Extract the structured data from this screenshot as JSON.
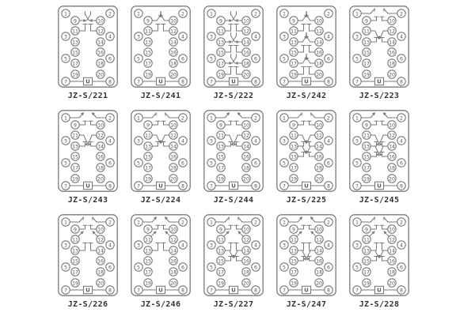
{
  "page": {
    "background": "#ffffff",
    "line_color": "#7a7a7a",
    "number_color": "#565656",
    "label_color": "#333333"
  },
  "terminal_block": {
    "outer_left": [
      "1",
      "3",
      "5",
      "7"
    ],
    "outer_right": [
      "2",
      "4",
      "6",
      "8"
    ],
    "inner_left": [
      "9",
      "11",
      "13",
      "15",
      "17",
      "19"
    ],
    "inner_right": [
      "10",
      "12",
      "14",
      "16",
      "18",
      "20"
    ],
    "power_label": "U"
  },
  "diagrams": [
    {
      "label": "JZ-S/221",
      "contacts": [
        {
          "a": "9",
          "b": "11",
          "pos": "inner-up",
          "kind": "instant"
        },
        {
          "a": "10",
          "b": "12",
          "pos": "inner-up",
          "kind": "instant"
        }
      ]
    },
    {
      "label": "JZ-S/241",
      "contacts": [
        {
          "a": "9",
          "b": "11",
          "pos": "inner-up",
          "kind": "delayed"
        },
        {
          "a": "10",
          "b": "12",
          "pos": "inner-up",
          "kind": "delayed"
        }
      ]
    },
    {
      "label": "JZ-S/222",
      "contacts": [
        {
          "a": "9",
          "b": "11",
          "pos": "inner-up",
          "kind": "instant"
        },
        {
          "a": "10",
          "b": "12",
          "pos": "inner-up",
          "kind": "instant"
        },
        {
          "a": "13",
          "b": "15",
          "pos": "inner-up",
          "kind": "instant"
        },
        {
          "a": "14",
          "b": "16",
          "pos": "inner-up",
          "kind": "instant"
        },
        {
          "a": "17",
          "b": "19",
          "pos": "inner-up",
          "kind": "instant"
        },
        {
          "a": "18",
          "b": "20",
          "pos": "inner-up",
          "kind": "instant"
        }
      ]
    },
    {
      "label": "JZ-S/242",
      "contacts": [
        {
          "a": "9",
          "b": "11",
          "pos": "inner-up",
          "kind": "delayed"
        },
        {
          "a": "10",
          "b": "12",
          "pos": "inner-up",
          "kind": "delayed"
        },
        {
          "a": "13",
          "b": "15",
          "pos": "inner-up",
          "kind": "delayed"
        },
        {
          "a": "14",
          "b": "16",
          "pos": "inner-up",
          "kind": "delayed"
        },
        {
          "a": "17",
          "b": "19",
          "pos": "inner-up",
          "kind": "delayed"
        },
        {
          "a": "18",
          "b": "20",
          "pos": "inner-up",
          "kind": "delayed"
        }
      ]
    },
    {
      "label": "JZ-S/223",
      "contacts": [
        {
          "a": "1",
          "b": "9",
          "pos": "top",
          "kind": "instant"
        },
        {
          "a": "2",
          "b": "10",
          "pos": "top",
          "kind": "instant"
        },
        {
          "a": "11",
          "b": "13",
          "pos": "inner-down",
          "kind": "instant"
        },
        {
          "a": "12",
          "b": "14",
          "pos": "inner-down",
          "kind": "instant"
        }
      ]
    },
    {
      "label": "JZ-S/243",
      "contacts": [
        {
          "a": "1",
          "b": "9",
          "pos": "top",
          "kind": "delayed"
        },
        {
          "a": "2",
          "b": "10",
          "pos": "top",
          "kind": "delayed"
        },
        {
          "a": "11",
          "b": "13",
          "pos": "inner-down",
          "kind": "delayed"
        },
        {
          "a": "12",
          "b": "14",
          "pos": "inner-down",
          "kind": "delayed"
        }
      ]
    },
    {
      "label": "JZ-S/224",
      "contacts": [
        {
          "a": "1",
          "b": "9",
          "pos": "top",
          "kind": "instant"
        },
        {
          "a": "2",
          "b": "10",
          "pos": "top",
          "kind": "instant"
        },
        {
          "a": "11",
          "b": "13",
          "pos": "inner-down",
          "kind": "instant"
        },
        {
          "a": "12",
          "b": "14",
          "pos": "inner-down",
          "kind": "instant"
        }
      ]
    },
    {
      "label": "JZ-S/244",
      "contacts": [
        {
          "a": "1",
          "b": "9",
          "pos": "top",
          "kind": "delayed"
        },
        {
          "a": "2",
          "b": "10",
          "pos": "top",
          "kind": "delayed"
        },
        {
          "a": "11",
          "b": "13",
          "pos": "inner-down",
          "kind": "delayed"
        },
        {
          "a": "12",
          "b": "14",
          "pos": "inner-down",
          "kind": "delayed"
        }
      ]
    },
    {
      "label": "JZ-S/225",
      "contacts": [
        {
          "a": "1",
          "b": "9",
          "pos": "top",
          "kind": "instant"
        },
        {
          "a": "2",
          "b": "10",
          "pos": "top",
          "kind": "instant"
        },
        {
          "a": "11",
          "b": "13",
          "pos": "inner-down",
          "kind": "instant"
        },
        {
          "a": "12",
          "b": "14",
          "pos": "inner-down",
          "kind": "instant"
        },
        {
          "a": "13",
          "b": "15",
          "pos": "inner-down",
          "kind": "instant"
        },
        {
          "a": "14",
          "b": "16",
          "pos": "inner-down",
          "kind": "instant"
        }
      ]
    },
    {
      "label": "JZ-S/245",
      "contacts": [
        {
          "a": "1",
          "b": "9",
          "pos": "top",
          "kind": "delayed"
        },
        {
          "a": "2",
          "b": "10",
          "pos": "top",
          "kind": "delayed"
        },
        {
          "a": "11",
          "b": "13",
          "pos": "inner-down",
          "kind": "delayed"
        },
        {
          "a": "12",
          "b": "14",
          "pos": "inner-down",
          "kind": "delayed"
        },
        {
          "a": "13",
          "b": "15",
          "pos": "inner-down",
          "kind": "delayed"
        },
        {
          "a": "14",
          "b": "16",
          "pos": "inner-down",
          "kind": "delayed"
        }
      ]
    },
    {
      "label": "JZ-S/226",
      "contacts": [
        {
          "a": "1",
          "b": "9",
          "pos": "top",
          "kind": "instant"
        },
        {
          "a": "2",
          "b": "10",
          "pos": "top",
          "kind": "instant"
        },
        {
          "a": "11",
          "b": "13",
          "pos": "terminal-arrow",
          "kind": "instant"
        },
        {
          "a": "12",
          "b": "14",
          "pos": "terminal-arrow",
          "kind": "instant"
        }
      ]
    },
    {
      "label": "JZ-S/246",
      "contacts": [
        {
          "a": "1",
          "b": "9",
          "pos": "top",
          "kind": "delayed"
        },
        {
          "a": "2",
          "b": "10",
          "pos": "top",
          "kind": "delayed"
        },
        {
          "a": "11",
          "b": "13",
          "pos": "terminal-arrow",
          "kind": "delayed"
        },
        {
          "a": "12",
          "b": "14",
          "pos": "terminal-arrow",
          "kind": "delayed"
        }
      ]
    },
    {
      "label": "JZ-S/227",
      "contacts": [
        {
          "a": "1",
          "b": "9",
          "pos": "top",
          "kind": "instant"
        },
        {
          "a": "2",
          "b": "10",
          "pos": "top",
          "kind": "instant"
        },
        {
          "a": "11",
          "b": "13",
          "pos": "terminal-arrow",
          "kind": "instant"
        },
        {
          "a": "12",
          "b": "14",
          "pos": "terminal-arrow",
          "kind": "instant"
        },
        {
          "a": "13",
          "b": "15",
          "pos": "inner-down",
          "kind": "instant"
        },
        {
          "a": "14",
          "b": "16",
          "pos": "inner-down",
          "kind": "instant"
        }
      ]
    },
    {
      "label": "JZ-S/247",
      "contacts": [
        {
          "a": "1",
          "b": "9",
          "pos": "top",
          "kind": "delayed"
        },
        {
          "a": "2",
          "b": "10",
          "pos": "top",
          "kind": "delayed"
        },
        {
          "a": "11",
          "b": "13",
          "pos": "terminal-arrow",
          "kind": "delayed"
        },
        {
          "a": "12",
          "b": "14",
          "pos": "terminal-arrow",
          "kind": "delayed"
        },
        {
          "a": "13",
          "b": "15",
          "pos": "inner-down",
          "kind": "delayed"
        },
        {
          "a": "14",
          "b": "16",
          "pos": "inner-down",
          "kind": "delayed"
        }
      ]
    },
    {
      "label": "JZ-S/228",
      "contacts": [
        {
          "a": "1",
          "b": "9",
          "pos": "top",
          "kind": "instant"
        },
        {
          "a": "2",
          "b": "10",
          "pos": "top",
          "kind": "instant"
        },
        {
          "a": "11",
          "b": "13",
          "pos": "terminal-arrow",
          "kind": "instant"
        },
        {
          "a": "12",
          "b": "14",
          "pos": "terminal-arrow",
          "kind": "instant"
        },
        {
          "a": "13",
          "b": "15",
          "pos": "inner-down",
          "kind": "instant"
        },
        {
          "a": "14",
          "b": "16",
          "pos": "inner-down",
          "kind": "instant"
        }
      ]
    }
  ]
}
